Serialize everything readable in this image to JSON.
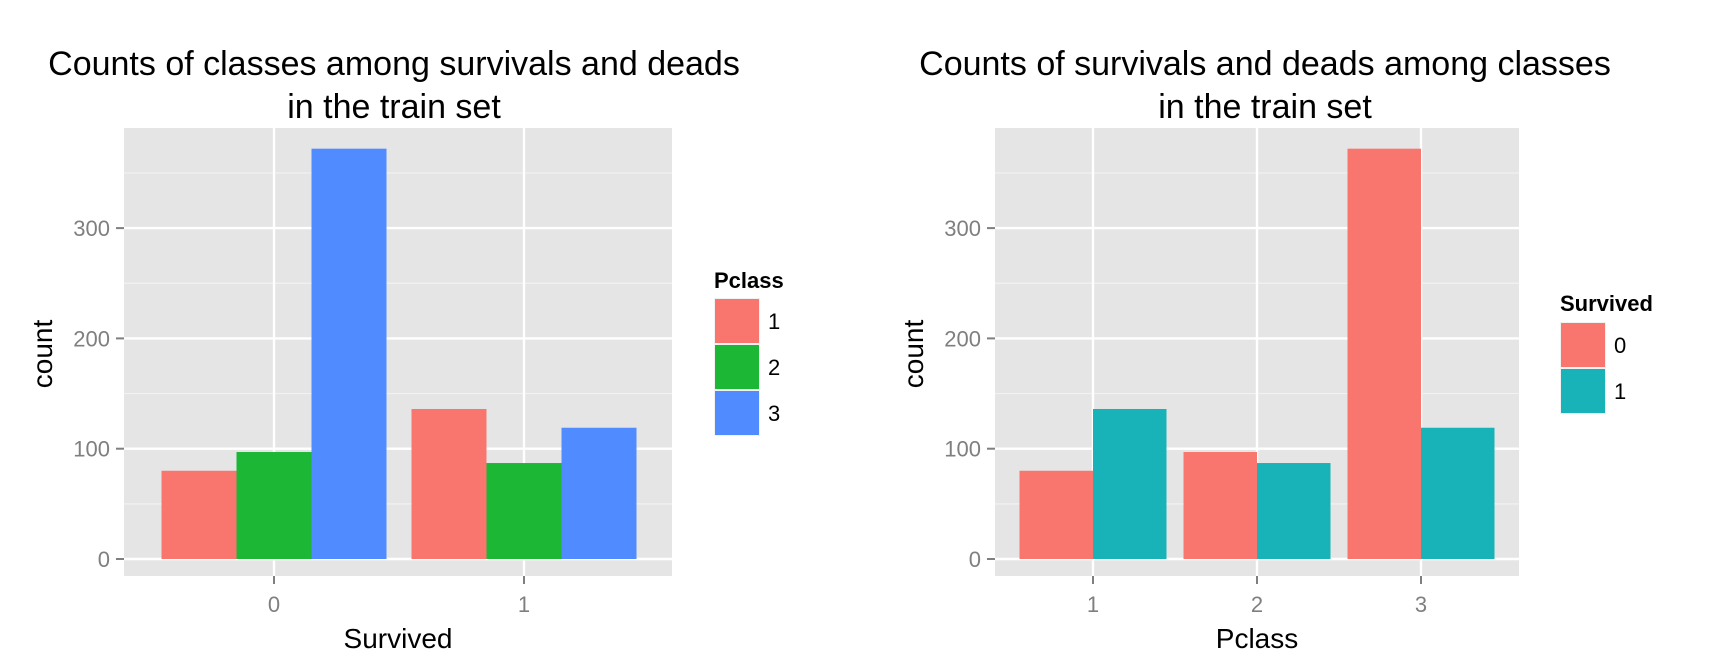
{
  "chart_data": [
    {
      "type": "bar",
      "title_lines": [
        "Counts of classes among survivals and deads",
        "in the train set"
      ],
      "xlabel": "Survived",
      "ylabel": "count",
      "categories": [
        "0",
        "1"
      ],
      "series": [
        {
          "name": "1",
          "values": [
            80,
            136
          ]
        },
        {
          "name": "2",
          "values": [
            97,
            87
          ]
        },
        {
          "name": "3",
          "values": [
            372,
            119
          ]
        }
      ],
      "ylim": [
        0,
        390
      ],
      "yticks": [
        0,
        100,
        200,
        300
      ],
      "legend_title": "Pclass",
      "legend_position": "right",
      "grid": true,
      "colors": [
        "#F8766D",
        "#1CB735",
        "#508BFF"
      ]
    },
    {
      "type": "bar",
      "title_lines": [
        "Counts of survivals and deads among classes",
        "in the train set"
      ],
      "xlabel": "Pclass",
      "ylabel": "count",
      "categories": [
        "1",
        "2",
        "3"
      ],
      "series": [
        {
          "name": "0",
          "values": [
            80,
            97,
            372
          ]
        },
        {
          "name": "1",
          "values": [
            136,
            87,
            119
          ]
        }
      ],
      "ylim": [
        0,
        390
      ],
      "yticks": [
        0,
        100,
        200,
        300
      ],
      "legend_title": "Survived",
      "legend_position": "right",
      "grid": true,
      "colors": [
        "#F8766D",
        "#17B3B8"
      ]
    }
  ]
}
